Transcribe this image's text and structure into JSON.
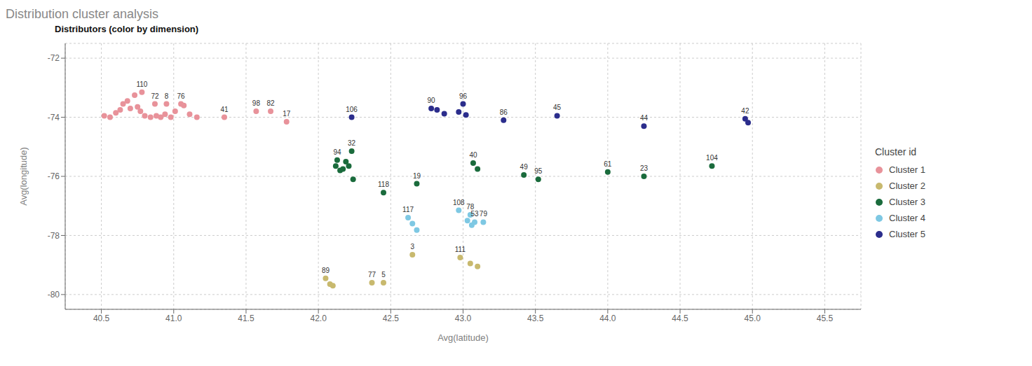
{
  "chart_data": {
    "type": "scatter",
    "title": "Distribution cluster analysis",
    "subtitle": "Distributors (color by dimension)",
    "xlabel": "Avg(latitude)",
    "ylabel": "Avg(longitude)",
    "legend_title": "Cluster id",
    "legend": "right",
    "grid": true,
    "xlim": [
      40.25,
      45.75
    ],
    "ylim": [
      -80.5,
      -71.5
    ],
    "xticks": [
      40.5,
      {
        "value": 41,
        "label": "41.0"
      },
      41.5,
      {
        "value": 42,
        "label": "42.0"
      },
      42.5,
      {
        "value": 43,
        "label": "43.0"
      },
      43.5,
      {
        "value": 44,
        "label": "44.0"
      },
      44.5,
      {
        "value": 45,
        "label": "45.0"
      },
      45.5
    ],
    "yticks": [
      -72,
      -74,
      -76,
      -78,
      -80
    ],
    "series": [
      {
        "name": "Cluster 1",
        "color": "#e8929a",
        "x": [
          40.78,
          40.87,
          40.95,
          41.05,
          41.35,
          41.57,
          41.67,
          41.78,
          40.52,
          40.56,
          40.6,
          40.63,
          40.65,
          40.68,
          40.7,
          40.73,
          40.75,
          40.77,
          40.8,
          40.84,
          40.88,
          40.91,
          40.94,
          40.98,
          41.01,
          41.07,
          41.11,
          41.16
        ],
        "y": [
          -73.15,
          -73.55,
          -73.55,
          -73.55,
          -74.0,
          -73.8,
          -73.8,
          -74.15,
          -73.95,
          -74.0,
          -73.85,
          -73.75,
          -73.55,
          -73.45,
          -73.7,
          -73.25,
          -73.65,
          -73.8,
          -73.95,
          -74.0,
          -73.95,
          -74.0,
          -73.9,
          -74.0,
          -73.8,
          -73.6,
          -73.9,
          -74.0
        ],
        "point_labels": [
          "110",
          "72",
          "8",
          "76",
          "41",
          "98",
          "82",
          "17",
          null,
          null,
          null,
          null,
          null,
          null,
          null,
          null,
          null,
          null,
          null,
          null,
          null,
          null,
          null,
          null,
          null,
          null,
          null,
          null
        ]
      },
      {
        "name": "Cluster 2",
        "color": "#c8b96e",
        "x": [
          42.05,
          42.37,
          42.45,
          42.08,
          42.1,
          42.65,
          42.98,
          43.05,
          43.1
        ],
        "y": [
          -79.45,
          -79.6,
          -79.6,
          -79.65,
          -79.7,
          -78.65,
          -78.75,
          -78.95,
          -79.05
        ],
        "point_labels": [
          "89",
          "77",
          "5",
          null,
          null,
          "3",
          "111",
          null,
          null
        ]
      },
      {
        "name": "Cluster 3",
        "color": "#1a6b3c",
        "x": [
          42.13,
          42.23,
          42.45,
          42.68,
          43.07,
          43.42,
          43.52,
          44.0,
          44.25,
          44.72,
          42.12,
          42.15,
          42.17,
          42.19,
          42.21,
          42.24,
          43.1
        ],
        "y": [
          -75.45,
          -75.15,
          -76.55,
          -76.25,
          -75.55,
          -75.95,
          -76.1,
          -75.85,
          -76.0,
          -75.65,
          -75.65,
          -75.8,
          -75.75,
          -75.5,
          -75.65,
          -76.1,
          -75.75
        ],
        "point_labels": [
          "94",
          "32",
          "118",
          "19",
          "40",
          "49",
          "95",
          "61",
          "23",
          "104",
          null,
          null,
          null,
          null,
          null,
          null,
          null
        ]
      },
      {
        "name": "Cluster 4",
        "color": "#7ec8e3",
        "x": [
          42.62,
          42.97,
          43.05,
          43.08,
          43.14,
          42.65,
          42.68,
          43.03,
          43.06
        ],
        "y": [
          -77.4,
          -77.15,
          -77.3,
          -77.55,
          -77.55,
          -77.6,
          -77.82,
          -77.5,
          -77.65
        ],
        "point_labels": [
          "117",
          "108",
          "78",
          "53",
          "79",
          null,
          null,
          null,
          null
        ]
      },
      {
        "name": "Cluster 5",
        "color": "#2b2d8c",
        "x": [
          42.23,
          42.78,
          43.0,
          43.28,
          43.65,
          44.25,
          44.95,
          42.82,
          42.87,
          42.97,
          43.02,
          44.97
        ],
        "y": [
          -74.0,
          -73.7,
          -73.55,
          -74.1,
          -73.95,
          -74.3,
          -74.05,
          -73.75,
          -73.88,
          -73.82,
          -73.92,
          -74.18
        ],
        "point_labels": [
          "106",
          "90",
          "96",
          "86",
          "45",
          "44",
          "42",
          null,
          null,
          null,
          null,
          null
        ]
      }
    ]
  }
}
